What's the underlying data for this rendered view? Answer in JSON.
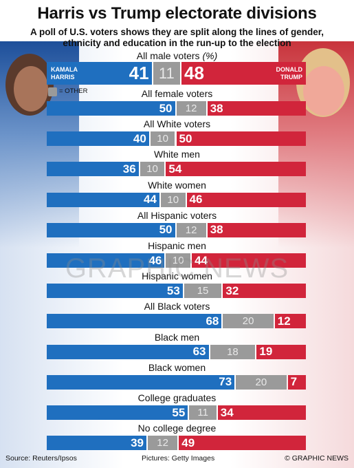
{
  "title": "Harris vs Trump electorate divisions",
  "subtitle": [
    "A poll of U.S. voters shows they are split along the lines of gender,",
    "ethnicity and education in the run-up to the election"
  ],
  "unit_note": "(%)",
  "candidates": {
    "left": "KAMALA HARRIS",
    "right": "DONALD TRUMP"
  },
  "legend_other": "= OTHER",
  "watermark": "GRAPHIC NEWS",
  "footer": {
    "source": "Source: Reuters/Ipsos",
    "pictures": "Pictures: Getty Images",
    "credit": "© GRAPHIC NEWS"
  },
  "colors": {
    "harris": "#1f6fbf",
    "other": "#9a9a9a",
    "trump": "#d1253b"
  },
  "chart_data": {
    "type": "bar",
    "stacked": true,
    "orientation": "horizontal",
    "categories": [
      "All male voters",
      "All female voters",
      "All White voters",
      "White men",
      "White women",
      "All Hispanic voters",
      "Hispanic men",
      "Hispanic women",
      "All Black voters",
      "Black men",
      "Black women",
      "College graduates",
      "No college degree"
    ],
    "series": [
      {
        "name": "KAMALA HARRIS",
        "values": [
          41,
          50,
          40,
          36,
          44,
          50,
          46,
          53,
          68,
          63,
          73,
          55,
          39
        ]
      },
      {
        "name": "OTHER",
        "values": [
          11,
          12,
          10,
          10,
          10,
          12,
          10,
          15,
          20,
          18,
          20,
          11,
          12
        ]
      },
      {
        "name": "DONALD TRUMP",
        "values": [
          48,
          38,
          50,
          54,
          46,
          38,
          44,
          32,
          12,
          19,
          7,
          34,
          49
        ]
      }
    ],
    "xlim": [
      0,
      100
    ]
  }
}
